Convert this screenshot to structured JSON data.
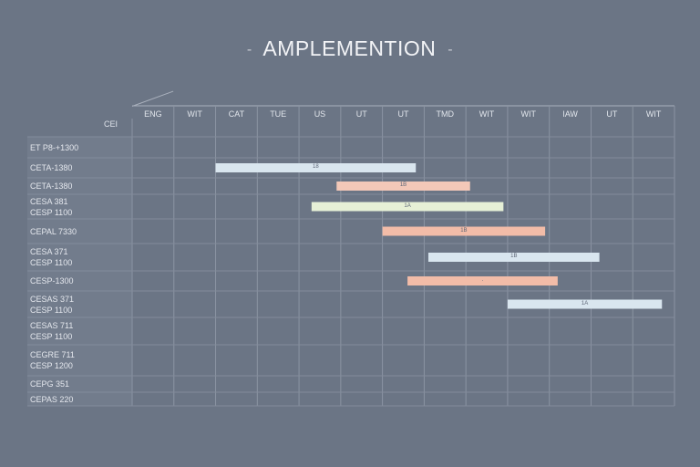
{
  "title": "AMPLEMENTION",
  "title_dash": "-",
  "header_row_label": "CEI",
  "chart_data": {
    "type": "gantt",
    "title": "AMPLEMENTION",
    "columns": [
      "ENG",
      "WIT",
      "CAT",
      "TUE",
      "US",
      "UT",
      "UT",
      "TMD",
      "WIT",
      "WIT",
      "IAW",
      "UT",
      "WIT"
    ],
    "rows": [
      [
        "ET P8-+1300"
      ],
      [
        "CETA-1380"
      ],
      [
        "CETA-1380"
      ],
      [
        "CESA 381",
        "CESP 1100"
      ],
      [
        "CEPAL 7330"
      ],
      [
        "CESA 371",
        "CESP 1100"
      ],
      [
        "CESP-1300"
      ],
      [
        "CESAS 371",
        "CESP 1100"
      ],
      [
        "CESAS 711",
        "CESP 1100"
      ],
      [
        "CEGRE 711",
        "CESP 1200"
      ],
      [
        "CEPG 351"
      ],
      [
        "CEPAS 220"
      ]
    ],
    "tasks": [
      {
        "row": 1,
        "start": 2,
        "end": 6.8,
        "label": "18",
        "color": "#d9e6ef"
      },
      {
        "row": 2,
        "start": 4.9,
        "end": 8.1,
        "label": "1B",
        "color": "#f3c8b8"
      },
      {
        "row": 3,
        "start": 4.3,
        "end": 8.9,
        "label": "1A",
        "color": "#e6f0d6"
      },
      {
        "row": 4,
        "start": 6.0,
        "end": 9.9,
        "label": "1B",
        "color": "#f2bca8"
      },
      {
        "row": 5,
        "start": 7.1,
        "end": 11.2,
        "label": "1B",
        "color": "#d9e6ef"
      },
      {
        "row": 6,
        "start": 6.6,
        "end": 10.2,
        "label": ".",
        "color": "#f2bca8"
      },
      {
        "row": 7,
        "start": 9.0,
        "end": 12.7,
        "label": "1A",
        "color": "#d9e6ef"
      }
    ]
  }
}
